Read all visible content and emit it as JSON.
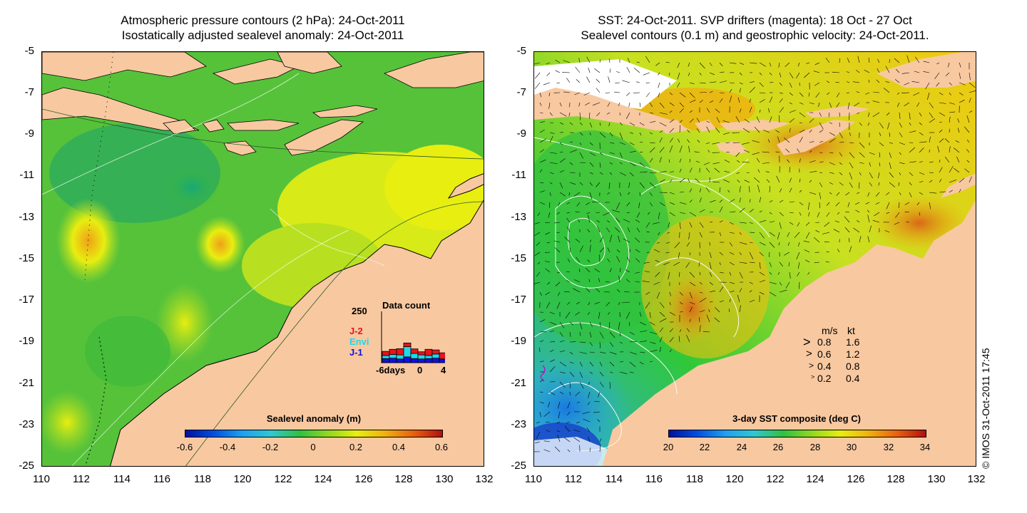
{
  "left": {
    "title_line1": "Atmospheric pressure contours (2 hPa): 24-Oct-2011",
    "title_line2": "Isostatically adjusted sealevel anomaly: 24-Oct-2011",
    "y_ticks": [
      "-5",
      "-7",
      "-9",
      "-11",
      "-13",
      "-15",
      "-17",
      "-19",
      "-21",
      "-23",
      "-25"
    ],
    "x_ticks": [
      "110",
      "112",
      "114",
      "116",
      "118",
      "120",
      "122",
      "124",
      "126",
      "128",
      "130",
      "132"
    ],
    "colorbar": {
      "title": "Sealevel anomaly (m)",
      "ticks": [
        "-0.6",
        "-0.4",
        "-0.2",
        "0",
        "0.2",
        "0.4",
        "0.6"
      ]
    },
    "histogram": {
      "title": "Data count",
      "y_max": "250",
      "x_labels": [
        "-6days",
        "0",
        "4"
      ],
      "legend": [
        {
          "label": "J-2",
          "color": "#e8141c"
        },
        {
          "label": "Envi",
          "color": "#20d8e8"
        },
        {
          "label": "J-1",
          "color": "#1010e0"
        }
      ],
      "bars": [
        {
          "j1": 20,
          "envi": 15,
          "j2": 20
        },
        {
          "j1": 22,
          "envi": 18,
          "j2": 25
        },
        {
          "j1": 18,
          "envi": 20,
          "j2": 30
        },
        {
          "j1": 28,
          "envi": 50,
          "j2": 18
        },
        {
          "j1": 20,
          "envi": 25,
          "j2": 22
        },
        {
          "j1": 18,
          "envi": 20,
          "j2": 15
        },
        {
          "j1": 20,
          "envi": 15,
          "j2": 30
        },
        {
          "j1": 22,
          "envi": 20,
          "j2": 20
        },
        {
          "j1": 18,
          "envi": 0,
          "j2": 30
        }
      ]
    }
  },
  "right": {
    "title_line1": "SST: 24-Oct-2011. SVP drifters (magenta): 18 Oct - 27 Oct",
    "title_line2": "Sealevel contours (0.1 m) and geostrophic velocity: 24-Oct-2011.",
    "y_ticks": [
      "-5",
      "-7",
      "-9",
      "-11",
      "-13",
      "-15",
      "-17",
      "-19",
      "-21",
      "-23",
      "-25"
    ],
    "x_ticks": [
      "110",
      "112",
      "114",
      "116",
      "118",
      "120",
      "122",
      "124",
      "126",
      "128",
      "130",
      "132"
    ],
    "colorbar": {
      "title": "3-day SST composite (deg C)",
      "ticks": [
        "20",
        "22",
        "24",
        "26",
        "28",
        "30",
        "32",
        "34"
      ]
    },
    "velocity_legend": {
      "header_ms": "m/s",
      "header_kt": "kt",
      "rows": [
        {
          "ms": "0.8",
          "kt": "1.6"
        },
        {
          "ms": "0.6",
          "kt": "1.2"
        },
        {
          "ms": "0.4",
          "kt": "0.8"
        },
        {
          "ms": "0.2",
          "kt": "0.4"
        }
      ]
    }
  },
  "credit": "© IMOS 31-Oct-2011 17:45",
  "colors": {
    "land": "#f8c8a0",
    "sla_low": "#2a9a2a",
    "sla_mid": "#7ad23a",
    "sla_high": "#e8ee10",
    "sla_peak": "#f0a018",
    "sst_cold": "#30a8e8",
    "sst_mid": "#30c838",
    "sst_warm": "#f0c810",
    "sst_hot": "#e07818"
  }
}
